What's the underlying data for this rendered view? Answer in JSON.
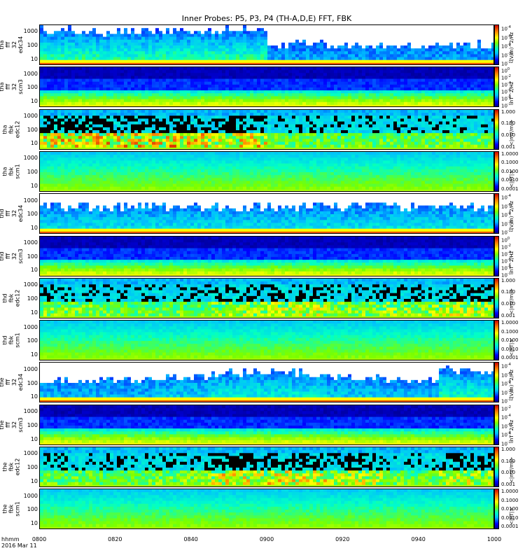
{
  "title": "Inner Probes: P5, P3, P4 (TH-A,D,E) FFT, FBK",
  "x_axis": {
    "ticks": [
      "0800",
      "0820",
      "0840",
      "0900",
      "0920",
      "0940",
      "1000"
    ],
    "format_label": "hhmm",
    "date_label": "2016 Mar 11"
  },
  "chart_data": [
    {
      "type": "heatmap",
      "probe": "tha",
      "label": [
        "tha",
        "fff",
        "32",
        "edc34"
      ],
      "yscale": "log",
      "yticks": [
        "1000",
        "100",
        "10"
      ],
      "cbar_unit": "(V/m)^2/Hz",
      "cbar_ticks": [
        "10^-4",
        "10^-6",
        "10^-8",
        "10^-10",
        "10^-12"
      ],
      "style": "efield",
      "activity": [
        0.9,
        0.85,
        0.9,
        0.9,
        0.3,
        0.3,
        0.3,
        0.3
      ]
    },
    {
      "type": "heatmap",
      "probe": "tha",
      "label": [
        "tha",
        "fff",
        "32",
        "scm3"
      ],
      "yscale": "log",
      "yticks": [
        "1000",
        "100",
        "10"
      ],
      "cbar_unit": "nT^2/Hz",
      "cbar_ticks": [
        "10^0",
        "10^-2",
        "10^-4",
        "10^-6",
        "10^-8",
        "10^-10"
      ],
      "style": "scm",
      "activity": [
        0.4,
        0.4,
        0.4,
        0.4,
        0.4,
        0.4,
        0.4,
        0.4
      ]
    },
    {
      "type": "heatmap",
      "probe": "tha",
      "label": [
        "tha",
        "fbk",
        "edc12"
      ],
      "yscale": "log",
      "yticks": [
        "1000",
        "100",
        "10"
      ],
      "cbar_unit": "<|mV/m|>",
      "cbar_ticks": [
        "1.000",
        "0.100",
        "0.010",
        "0.001"
      ],
      "style": "fbkE",
      "activity": [
        1.0,
        1.0,
        1.0,
        0.95,
        0.4,
        0.4,
        0.4,
        0.4
      ]
    },
    {
      "type": "heatmap",
      "probe": "tha",
      "label": [
        "tha",
        "fbk",
        "scm1"
      ],
      "yscale": "log",
      "yticks": [
        "1000",
        "100",
        "10"
      ],
      "cbar_unit": "<|nT|>",
      "cbar_ticks": [
        "1.0000",
        "0.1000",
        "0.0100",
        "0.0010",
        "0.0001"
      ],
      "style": "fbkB",
      "activity": [
        0.5,
        0.5,
        0.5,
        0.5,
        0.5,
        0.5,
        0.5,
        0.5
      ]
    },
    {
      "type": "heatmap",
      "probe": "thd",
      "label": [
        "thd",
        "fff",
        "32",
        "edc34"
      ],
      "yscale": "log",
      "yticks": [
        "1000",
        "100",
        "10"
      ],
      "cbar_unit": "(V/m)^2/Hz",
      "cbar_ticks": [
        "10^-4",
        "10^-6",
        "10^-8",
        "10^-10",
        "10^-12"
      ],
      "style": "efield",
      "activity": [
        0.6,
        0.6,
        0.6,
        0.6,
        0.6,
        0.6,
        0.6,
        0.6
      ]
    },
    {
      "type": "heatmap",
      "probe": "thd",
      "label": [
        "thd",
        "fff",
        "32",
        "scm3"
      ],
      "yscale": "log",
      "yticks": [
        "1000",
        "100",
        "10"
      ],
      "cbar_unit": "nT^2/Hz",
      "cbar_ticks": [
        "10^0",
        "10^-2",
        "10^-4",
        "10^-6",
        "10^-8",
        "10^-10"
      ],
      "style": "scm",
      "activity": [
        0.4,
        0.4,
        0.4,
        0.4,
        0.4,
        0.4,
        0.4,
        0.4
      ]
    },
    {
      "type": "heatmap",
      "probe": "thd",
      "label": [
        "thd",
        "fbk",
        "edc12"
      ],
      "yscale": "log",
      "yticks": [
        "1000",
        "100",
        "10"
      ],
      "cbar_unit": "<|mV/m|>",
      "cbar_ticks": [
        "1.000",
        "0.100",
        "0.010",
        "0.001"
      ],
      "style": "fbkE",
      "activity": [
        0.5,
        0.4,
        0.4,
        0.6,
        0.7,
        0.5,
        0.6,
        0.7
      ]
    },
    {
      "type": "heatmap",
      "probe": "thd",
      "label": [
        "thd",
        "fbk",
        "scm1"
      ],
      "yscale": "log",
      "yticks": [
        "1000",
        "100",
        "10"
      ],
      "cbar_unit": "<|nT|>",
      "cbar_ticks": [
        "1.0000",
        "0.1000",
        "0.0100",
        "0.0010",
        "0.0001"
      ],
      "style": "fbkB",
      "activity": [
        0.5,
        0.5,
        0.5,
        0.5,
        0.5,
        0.5,
        0.5,
        0.5
      ]
    },
    {
      "type": "heatmap",
      "probe": "the",
      "label": [
        "the",
        "fff",
        "32",
        "edc34"
      ],
      "yscale": "log",
      "yticks": [
        "1000",
        "100",
        "10"
      ],
      "cbar_unit": "(V/m)^2/Hz",
      "cbar_ticks": [
        "10^-4",
        "10^-6",
        "10^-8",
        "10^-10",
        "10^-12"
      ],
      "style": "efield",
      "activity": [
        0.4,
        0.4,
        0.5,
        0.7,
        0.7,
        0.5,
        0.4,
        0.8
      ]
    },
    {
      "type": "heatmap",
      "probe": "the",
      "label": [
        "the",
        "fff",
        "32",
        "scm3"
      ],
      "yscale": "log",
      "yticks": [
        "1000",
        "100",
        "10"
      ],
      "cbar_unit": "nT^2/Hz",
      "cbar_ticks": [
        "10^-2",
        "10^-4",
        "10^-6",
        "10^-8",
        "10^-10"
      ],
      "style": "scm",
      "activity": [
        0.4,
        0.4,
        0.4,
        0.4,
        0.4,
        0.4,
        0.4,
        0.4
      ]
    },
    {
      "type": "heatmap",
      "probe": "the",
      "label": [
        "the",
        "fbk",
        "edc12"
      ],
      "yscale": "log",
      "yticks": [
        "1000",
        "100",
        "10"
      ],
      "cbar_unit": "<|mV/m|>",
      "cbar_ticks": [
        "1.000",
        "0.100",
        "0.010",
        "0.001"
      ],
      "style": "fbkE",
      "activity": [
        0.4,
        0.4,
        0.5,
        0.9,
        0.9,
        0.7,
        0.4,
        0.7
      ]
    },
    {
      "type": "heatmap",
      "probe": "the",
      "label": [
        "the",
        "fbk",
        "scm1"
      ],
      "yscale": "log",
      "yticks": [
        "1000",
        "100",
        "10"
      ],
      "cbar_unit": "<|nT|>",
      "cbar_ticks": [
        "1.0000",
        "0.1000",
        "0.0100",
        "0.0010",
        "0.0001"
      ],
      "style": "fbkB",
      "activity": [
        0.5,
        0.5,
        0.5,
        0.5,
        0.5,
        0.5,
        0.5,
        0.5
      ]
    }
  ]
}
